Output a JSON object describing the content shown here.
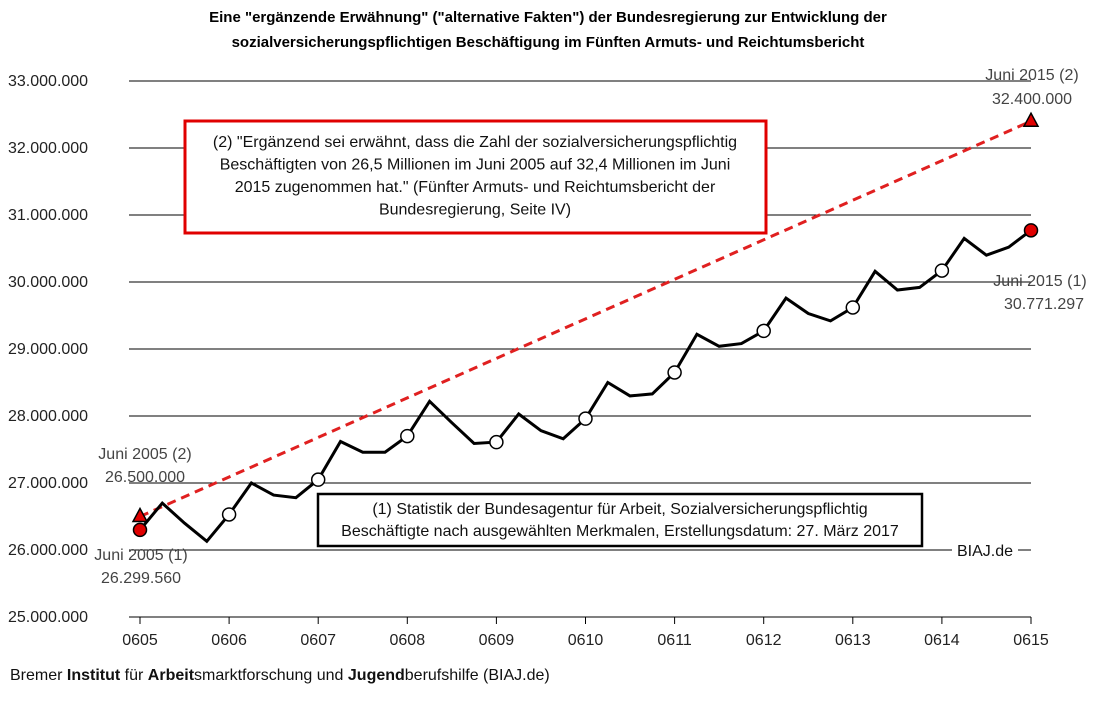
{
  "chart_data": {
    "type": "line",
    "title": [
      "Eine \"ergänzende Erwähnung\" (\"alternative Fakten\") der Bundesregierung zur Entwicklung der",
      "sozialversicherungspflichtigen Beschäftigung  im Fünften Armuts- und Reichtumsbericht"
    ],
    "x_ticks": [
      "0605",
      "0606",
      "0607",
      "0608",
      "0609",
      "0610",
      "0611",
      "0612",
      "0613",
      "0614",
      "0615"
    ],
    "y_ticks": [
      25000000,
      26000000,
      27000000,
      28000000,
      29000000,
      30000000,
      31000000,
      32000000,
      33000000
    ],
    "y_tick_labels": [
      "25.000.000",
      "26.000.000",
      "27.000.000",
      "28.000.000",
      "29.000.000",
      "30.000.000",
      "31.000.000",
      "32.000.000",
      "33.000.000"
    ],
    "ylim": [
      25000000,
      33000000
    ],
    "grid": true,
    "series": [
      {
        "color": "#000000",
        "style": "solid",
        "x": [
          "06/2005",
          "09/2005",
          "12/2005",
          "03/2006",
          "06/2006",
          "09/2006",
          "12/2006",
          "03/2007",
          "06/2007",
          "09/2007",
          "12/2007",
          "03/2008",
          "06/2008",
          "09/2008",
          "12/2008",
          "03/2009",
          "06/2009",
          "09/2009",
          "12/2009",
          "03/2010",
          "06/2010",
          "09/2010",
          "12/2010",
          "03/2011",
          "06/2011",
          "09/2011",
          "12/2011",
          "03/2012",
          "06/2012",
          "09/2012",
          "12/2012",
          "03/2013",
          "06/2013",
          "09/2013",
          "12/2013",
          "03/2014",
          "06/2014",
          "09/2014",
          "12/2014",
          "03/2015",
          "06/2015"
        ],
        "values": [
          26299560,
          26700000,
          26400000,
          26130000,
          26530000,
          27000000,
          26820000,
          26780000,
          27050000,
          27620000,
          27460000,
          27460000,
          27700000,
          28220000,
          27900000,
          27590000,
          27610000,
          28030000,
          27780000,
          27660000,
          27960000,
          28500000,
          28300000,
          28330000,
          28650000,
          29220000,
          29040000,
          29080000,
          29270000,
          29760000,
          29530000,
          29420000,
          29620000,
          30160000,
          29880000,
          29920000,
          30170000,
          30650000,
          30400000,
          30520000,
          30771297
        ],
        "june_markers": [
          0,
          4,
          8,
          12,
          16,
          20,
          24,
          28,
          32,
          36,
          40
        ]
      },
      {
        "color": "#e02020",
        "style": "dashed",
        "x": [
          "06/2005",
          "06/2015"
        ],
        "values": [
          26500000,
          32400000
        ]
      }
    ],
    "annotations": {
      "start_2_label": "Juni 2005 (2)",
      "start_2_value": "26.500.000",
      "start_1_label": "Juni 2005 (1)",
      "start_1_value": "26.299.560",
      "end_2_label": "Juni 2015 (2)",
      "end_2_value": "32.400.000",
      "end_1_label": "Juni 2015 (1)",
      "end_1_value": "30.771.297",
      "biaj": "BIAJ.de"
    },
    "box_red": [
      "(2) \"Ergänzend sei erwähnt, dass die Zahl der sozialversicherungspflichtig",
      "Beschäftigten von 26,5 Millionen im Juni 2005 auf 32,4 Millionen im Juni",
      "2015 zugenommen hat.\" (Fünfter Armuts- und Reichtumsbericht der",
      "Bundesregierung, Seite IV)"
    ],
    "box_black": [
      "(1) Statistik der Bundesagentur für Arbeit, Sozialversicherungspflichtig",
      "Beschäftigte nach ausgewählten Merkmalen, Erstellungsdatum: 27. März 2017"
    ]
  },
  "footer": {
    "p1": "Bremer ",
    "b1": "Institut",
    "p2": " für ",
    "b2": "Arbeit",
    "p3": "smarktforschung und ",
    "b3": "Jugend",
    "p4": "berufshilfe (BIAJ.de)"
  }
}
